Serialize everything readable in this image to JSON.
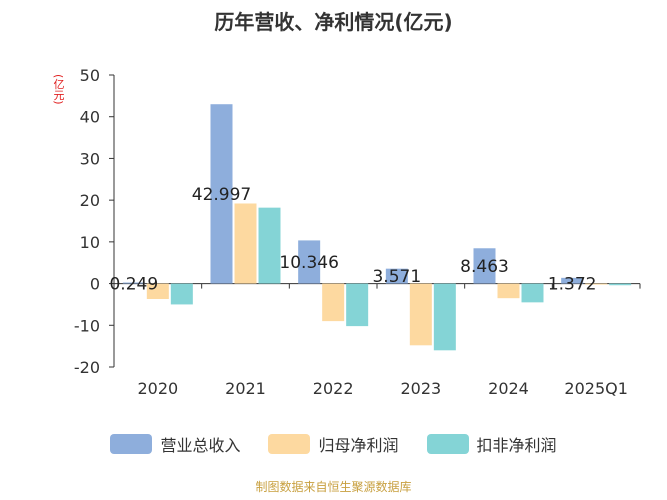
{
  "chart_data": {
    "type": "bar",
    "title": "历年营收、净利情况(亿元)",
    "y_unit_label": "(亿元)",
    "categories": [
      "2020",
      "2021",
      "2022",
      "2023",
      "2024",
      "2025Q1"
    ],
    "series": [
      {
        "name": "营业总收入",
        "color": "#8eaedc",
        "values": [
          0.249,
          42.997,
          10.346,
          3.571,
          8.463,
          1.372
        ],
        "labels": [
          "0.249",
          "42.997",
          "10.346",
          "3.571",
          "8.463",
          "1.372"
        ]
      },
      {
        "name": "归母净利润",
        "color": "#fdd9a0",
        "values": [
          -3.7,
          19.2,
          -9.0,
          -14.8,
          -3.5,
          -0.1
        ]
      },
      {
        "name": "扣非净利润",
        "color": "#84d4d6",
        "values": [
          -5.0,
          18.2,
          -10.2,
          -16.0,
          -4.5,
          -0.4
        ]
      }
    ],
    "ylim": [
      -20,
      50
    ],
    "yticks": [
      50,
      40,
      30,
      20,
      10,
      0,
      -10,
      -20
    ],
    "legend_position": "bottom",
    "grid": false
  },
  "source_text": "制图数据来自恒生聚源数据库"
}
